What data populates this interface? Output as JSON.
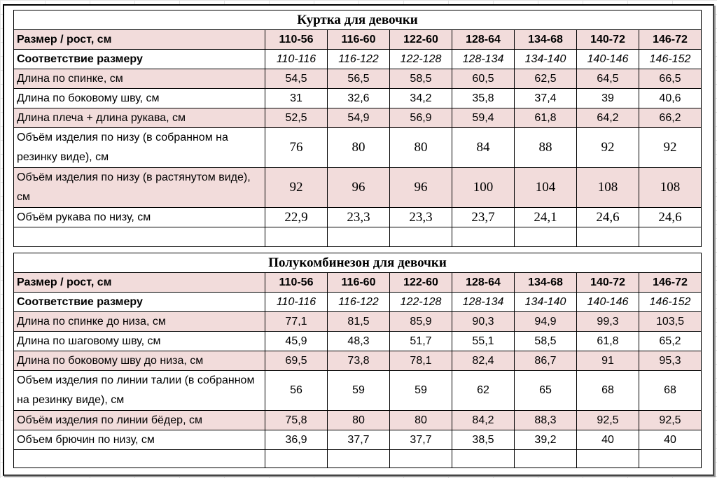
{
  "tables": [
    {
      "title": "Куртка для девочки",
      "header_label": "Размер / рост, см",
      "sizes": [
        "110-56",
        "116-60",
        "122-60",
        "128-64",
        "134-68",
        "140-72",
        "146-72"
      ],
      "correspondence_label": "Соответствие размеру",
      "correspondence": [
        "110-116",
        "116-122",
        "122-128",
        "128-134",
        "134-140",
        "140-146",
        "146-152"
      ],
      "rows": [
        {
          "label": "Длина по спинке, см",
          "values": [
            "54,5",
            "56,5",
            "58,5",
            "60,5",
            "62,5",
            "64,5",
            "66,5"
          ]
        },
        {
          "label": "Длина по боковому шву, см",
          "values": [
            "31",
            "32,6",
            "34,2",
            "35,8",
            "37,4",
            "39",
            "40,6"
          ]
        },
        {
          "label": "Длина плеча + длина рукава, см",
          "values": [
            "52,5",
            "54,9",
            "56,9",
            "59,4",
            "61,8",
            "64,2",
            "66,2"
          ]
        },
        {
          "label": "Объём изделия по низу (в собранном на резинку виде), см",
          "values": [
            "76",
            "80",
            "80",
            "84",
            "88",
            "92",
            "92"
          ]
        },
        {
          "label": "Объём изделия по низу (в растянутом виде), см",
          "values": [
            "92",
            "96",
            "96",
            "100",
            "104",
            "108",
            "108"
          ]
        },
        {
          "label": "Объём рукава по низу, см",
          "values": [
            "22,9",
            "23,3",
            "23,3",
            "23,7",
            "24,1",
            "24,6",
            "24,6"
          ]
        }
      ]
    },
    {
      "title": "Полукомбинезон для девочки",
      "header_label": "Размер / рост, см",
      "sizes": [
        "110-56",
        "116-60",
        "122-60",
        "128-64",
        "134-68",
        "140-72",
        "146-72"
      ],
      "correspondence_label": "Соответствие размеру",
      "correspondence": [
        "110-116",
        "116-122",
        "122-128",
        "128-134",
        "134-140",
        "140-146",
        "146-152"
      ],
      "rows": [
        {
          "label": "Длина по спинке до низа, см",
          "values": [
            "77,1",
            "81,5",
            "85,9",
            "90,3",
            "94,9",
            "99,3",
            "103,5"
          ]
        },
        {
          "label": "Длина по шаговому шву, см",
          "values": [
            "45,9",
            "48,3",
            "51,7",
            "55,1",
            "58,5",
            "61,8",
            "65,2"
          ]
        },
        {
          "label": "Длина по боковому шву до низа, см",
          "values": [
            "69,5",
            "73,8",
            "78,1",
            "82,4",
            "86,7",
            "91",
            "95,3"
          ]
        },
        {
          "label": "Объем изделия по линии талии (в собранном на резинку виде), см",
          "values": [
            "56",
            "59",
            "59",
            "62",
            "65",
            "68",
            "68"
          ]
        },
        {
          "label": "Объём изделия по линии бёдер, см",
          "values": [
            "75,8",
            "80",
            "80",
            "84,2",
            "88,3",
            "92,5",
            "92,5"
          ]
        },
        {
          "label": "Объем брючин по низу, см",
          "values": [
            "36,9",
            "37,7",
            "37,7",
            "38,5",
            "39,2",
            "40",
            "40"
          ]
        }
      ]
    }
  ],
  "colors": {
    "row_highlight": "#f2dcdb",
    "border": "#000000",
    "gridline": "#e4e4e4"
  }
}
